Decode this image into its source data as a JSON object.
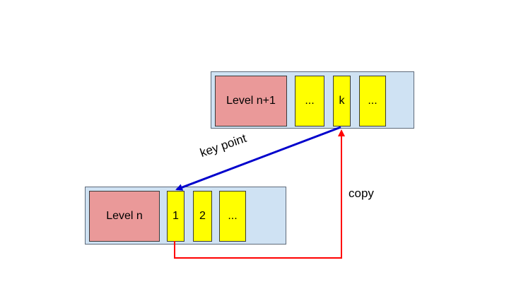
{
  "upper": {
    "level_label": "Level n+1",
    "cells": [
      "...",
      "k",
      "..."
    ]
  },
  "lower": {
    "level_label": "Level n",
    "cells": [
      "1",
      "2",
      "..."
    ]
  },
  "arrows": {
    "key_point_label": "key point",
    "copy_label": "copy",
    "key_point_color": "#0000cc",
    "copy_color": "#ff0000"
  }
}
